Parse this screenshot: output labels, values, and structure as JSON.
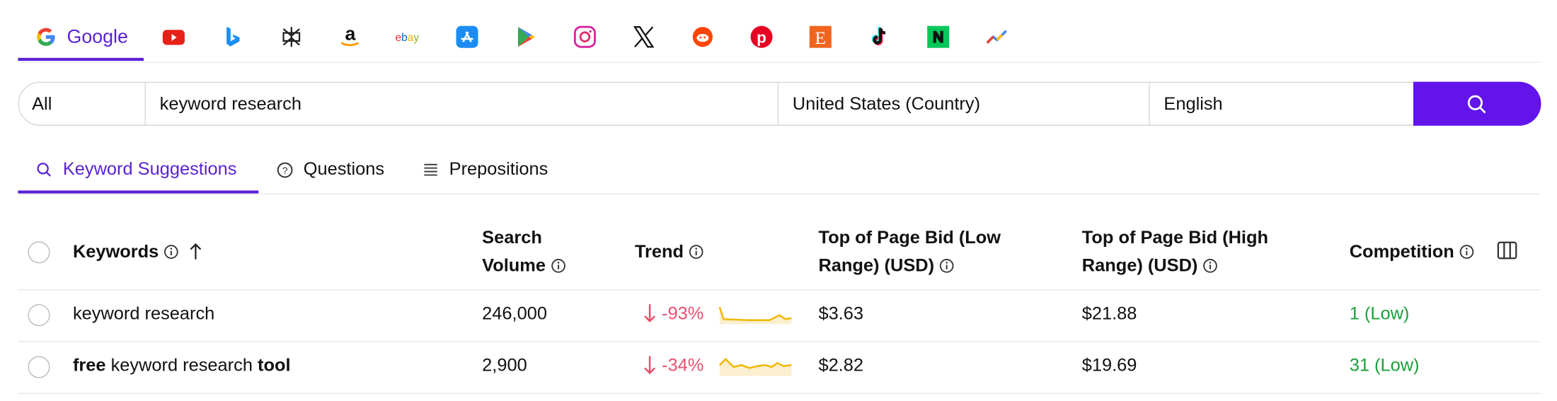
{
  "engine_tabs": {
    "active": "Google"
  },
  "search": {
    "filter": "All",
    "query": "keyword research",
    "location": "United States (Country)",
    "language": "English"
  },
  "result_tabs": [
    "Keyword Suggestions",
    "Questions",
    "Prepositions"
  ],
  "table": {
    "columns": [
      "Keywords",
      "Search Volume",
      "Trend",
      "Top of Page Bid (Low Range) (USD)",
      "Top of Page Bid (High Range) (USD)",
      "Competition"
    ],
    "rows": [
      {
        "keyword": [
          {
            "text": "keyword research",
            "bold": false
          }
        ],
        "search_volume": "246,000",
        "trend": "-93%",
        "bid_low": "$3.63",
        "bid_high": "$21.88",
        "competition": "1 (Low)"
      },
      {
        "keyword": [
          {
            "text": "free",
            "bold": true
          },
          {
            "text": " keyword research ",
            "bold": false
          },
          {
            "text": "tool",
            "bold": true
          }
        ],
        "search_volume": "2,900",
        "trend": "-34%",
        "bid_low": "$2.82",
        "bid_high": "$19.69",
        "competition": "31 (Low)"
      }
    ]
  }
}
